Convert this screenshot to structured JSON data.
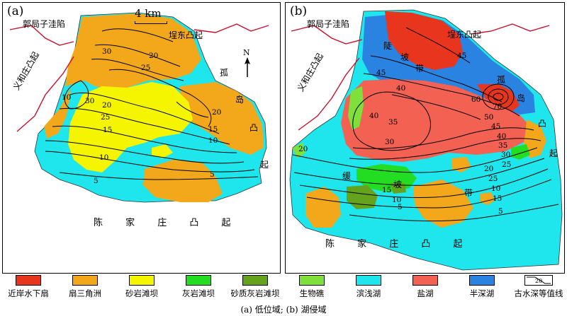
{
  "panels": [
    {
      "label": "(a)",
      "scale": "4 km",
      "north": "N",
      "uplifts": {
        "guoju": "郭局子洼陷",
        "budong": "埕东凸起",
        "yihe": "义和庄凸起",
        "gudao": [
          "孤",
          "岛",
          "凸",
          "起"
        ],
        "chenjia": "陈 家 庄 凸 起"
      },
      "contours": [
        "30",
        "25",
        "20",
        "30",
        "10",
        "20",
        "25",
        "15",
        "20",
        "10",
        "15",
        "10",
        "5",
        "5"
      ]
    },
    {
      "label": "(b)",
      "uplifts": {
        "guoju": "郭局子洼陷",
        "budong": "埕东凸起",
        "yihe": "义和庄凸起",
        "gudao": [
          "孤",
          "岛",
          "凸",
          "起"
        ],
        "chenjia": "陈 家 庄 凸 起"
      },
      "zones": [
        "陡",
        "坡",
        "带",
        "缓",
        "坡",
        "带"
      ],
      "contours": [
        "45",
        "45",
        "40",
        "60",
        "70",
        "40",
        "35",
        "50",
        "45",
        "40",
        "30",
        "35",
        "30",
        "25",
        "20",
        "20",
        "25",
        "15",
        "10",
        "10",
        "15",
        "5",
        "5"
      ]
    }
  ],
  "legend": [
    {
      "label": "近岸水下扇",
      "color": "#e8361e"
    },
    {
      "label": "扇三角洲",
      "color": "#f2a81a"
    },
    {
      "label": "砂岩滩坝",
      "color": "#f5f500"
    },
    {
      "label": "灰岩滩坝",
      "color": "#22dd22"
    },
    {
      "label": "砂质灰岩滩坝",
      "color": "#66a31c"
    },
    {
      "label": "生物礁",
      "color": "#7fe03c"
    },
    {
      "label": "滨浅湖",
      "color": "#1ee6ec"
    },
    {
      "label": "盐湖",
      "color": "#f26152"
    },
    {
      "label": "半深湖",
      "color": "#2a83e0"
    },
    {
      "label": "古水深等值线",
      "symbol": "20"
    }
  ],
  "caption": "(a) 低位域; (b) 湖侵域"
}
